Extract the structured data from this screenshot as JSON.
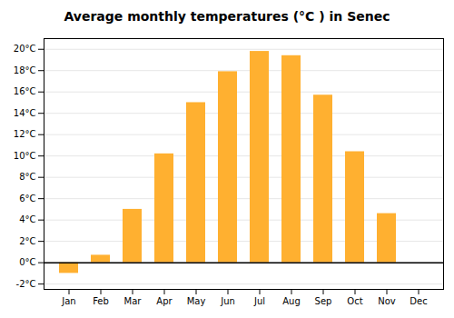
{
  "chart_data": {
    "type": "bar",
    "title": "Average monthly temperatures (°C ) in Senec",
    "categories": [
      "Jan",
      "Feb",
      "Mar",
      "Apr",
      "May",
      "Jun",
      "Jul",
      "Aug",
      "Sep",
      "Oct",
      "Nov",
      "Dec"
    ],
    "values": [
      -1.0,
      0.7,
      5.0,
      10.2,
      15.0,
      17.9,
      19.8,
      19.4,
      15.7,
      10.4,
      4.6,
      0.0
    ],
    "color": "#FFB030",
    "ylim": [
      -2.5,
      21
    ],
    "yticks": [
      {
        "value": -2,
        "label": "-2°C"
      },
      {
        "value": 0,
        "label": "0°C"
      },
      {
        "value": 2,
        "label": "2°C"
      },
      {
        "value": 4,
        "label": "4°C"
      },
      {
        "value": 6,
        "label": "6°C"
      },
      {
        "value": 8,
        "label": "8°C"
      },
      {
        "value": 10,
        "label": "10°C"
      },
      {
        "value": 12,
        "label": "12°C"
      },
      {
        "value": 14,
        "label": "14°C"
      },
      {
        "value": 16,
        "label": "16°C"
      },
      {
        "value": 18,
        "label": "18°C"
      },
      {
        "value": 20,
        "label": "20°C"
      }
    ],
    "grid": true
  }
}
